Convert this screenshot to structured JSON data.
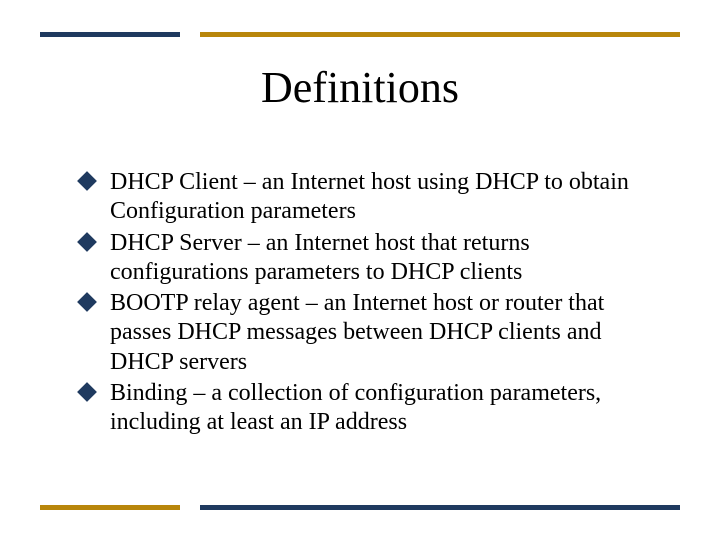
{
  "colors": {
    "accent": "#1f3a5f",
    "gold": "#b8860b",
    "text": "#000000",
    "background": "#ffffff"
  },
  "title": "Definitions",
  "bullets": [
    "DHCP Client – an Internet host using DHCP to obtain Configuration parameters",
    "DHCP Server – an Internet host that returns configurations parameters to DHCP clients",
    "BOOTP relay agent – an Internet host or router that passes DHCP messages between DHCP clients and DHCP servers",
    "Binding – a collection of configuration parameters, including at least an IP address"
  ]
}
